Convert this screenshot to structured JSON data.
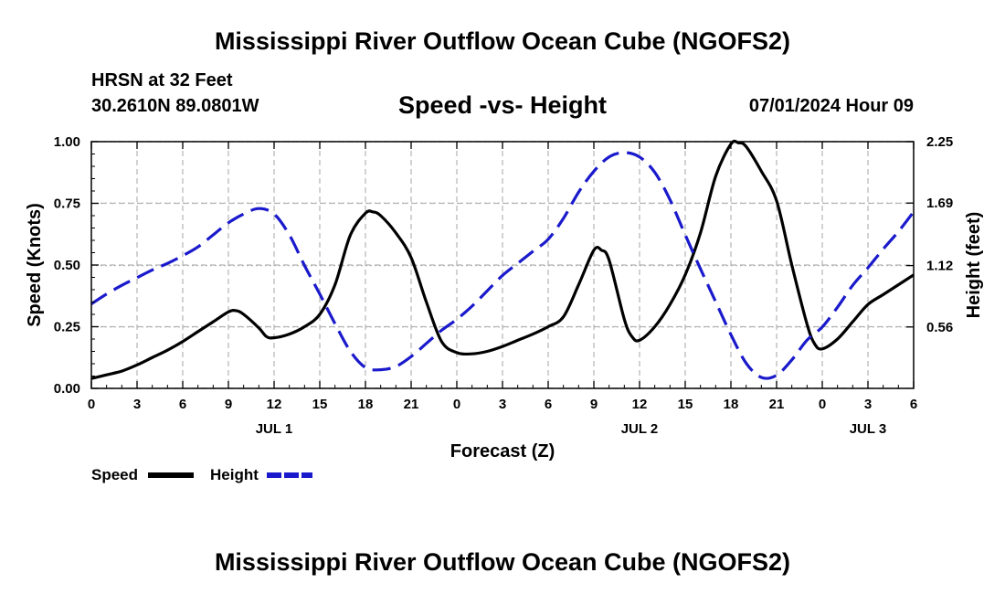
{
  "page": {
    "main_title": "Mississippi River Outflow Ocean Cube (NGOFS2)",
    "station_line": "HRSN at 32 Feet",
    "coords_line": "30.2610N  89.0801W",
    "subtitle": "Speed -vs- Height",
    "timestamp": "07/01/2024 Hour 09",
    "footer_title": "Mississippi River Outflow Ocean Cube (NGOFS2)"
  },
  "colors": {
    "speed": "#000000",
    "height": "#1a1acc",
    "grid": "#b4b4b4"
  },
  "chart_data": {
    "type": "line",
    "title": "Speed -vs- Height",
    "xlabel": "Forecast (Z)",
    "ylabel_left": "Speed (Knots)",
    "ylabel_right": "Height (feet)",
    "x_unit": "hours since 00Z Jul 1",
    "xlim": [
      0,
      54
    ],
    "x_ticks": [
      0,
      3,
      6,
      9,
      12,
      15,
      18,
      21,
      24,
      27,
      30,
      33,
      36,
      39,
      42,
      45,
      48,
      51,
      54
    ],
    "x_tick_labels": [
      "0",
      "3",
      "6",
      "9",
      "12",
      "15",
      "18",
      "21",
      "0",
      "3",
      "6",
      "9",
      "12",
      "15",
      "18",
      "21",
      "0",
      "3",
      "6"
    ],
    "day_labels": [
      {
        "x": 12,
        "label": "JUL 1"
      },
      {
        "x": 36,
        "label": "JUL 2"
      },
      {
        "x": 51,
        "label": "JUL 3"
      }
    ],
    "ylim_left": [
      0,
      1
    ],
    "left_ticks": [
      0,
      0.25,
      0.5,
      0.75,
      1.0
    ],
    "left_tick_labels": [
      "0.00",
      "0.25",
      "0.50",
      "0.75",
      "1.00"
    ],
    "ylim_right": [
      0,
      2.25
    ],
    "right_ticks": [
      0.56,
      1.12,
      1.69,
      2.25
    ],
    "right_tick_labels": [
      "0.56",
      "1.12",
      "1.69",
      "2.25"
    ],
    "grid": true,
    "legend": [
      {
        "label": "Speed",
        "style": "solid",
        "series": "speed"
      },
      {
        "label": "Height",
        "style": "dashed",
        "series": "height"
      }
    ],
    "series": [
      {
        "name": "Speed",
        "axis": "left",
        "style": "solid",
        "x": [
          0,
          1,
          2,
          3,
          4,
          5,
          6,
          7,
          8,
          9,
          9.5,
          10,
          11,
          11.5,
          12,
          13,
          14,
          15,
          16,
          17,
          18,
          18.5,
          19,
          20,
          21,
          22,
          23,
          24,
          25,
          26,
          27,
          28,
          29,
          30,
          31,
          32,
          33,
          33.5,
          34,
          35,
          35.5,
          36,
          37,
          38,
          39,
          40,
          41,
          42,
          42.5,
          43,
          44,
          45,
          46,
          47,
          47.5,
          48,
          49,
          50,
          51,
          52,
          53,
          54
        ],
        "values": [
          0.04,
          0.055,
          0.07,
          0.095,
          0.125,
          0.155,
          0.19,
          0.23,
          0.27,
          0.31,
          0.315,
          0.3,
          0.245,
          0.21,
          0.205,
          0.22,
          0.25,
          0.3,
          0.42,
          0.62,
          0.71,
          0.715,
          0.7,
          0.63,
          0.53,
          0.35,
          0.19,
          0.145,
          0.14,
          0.15,
          0.17,
          0.195,
          0.22,
          0.25,
          0.29,
          0.42,
          0.56,
          0.56,
          0.52,
          0.28,
          0.21,
          0.195,
          0.25,
          0.34,
          0.46,
          0.63,
          0.86,
          0.99,
          0.995,
          0.98,
          0.88,
          0.76,
          0.5,
          0.26,
          0.18,
          0.16,
          0.2,
          0.27,
          0.34,
          0.38,
          0.42,
          0.46
        ]
      },
      {
        "name": "Height",
        "axis": "right",
        "style": "dashed",
        "x": [
          0,
          1,
          2,
          3,
          4,
          5,
          6,
          7,
          8,
          9,
          10,
          11,
          12,
          13,
          14,
          15,
          16,
          17,
          18,
          19,
          20,
          21,
          22,
          23,
          24,
          25,
          26,
          27,
          28,
          29,
          30,
          31,
          32,
          33,
          34,
          35,
          36,
          37,
          38,
          39,
          40,
          41,
          42,
          43,
          44,
          45,
          46,
          47,
          48,
          49,
          50,
          51,
          52,
          53,
          54
        ],
        "values": [
          0.77,
          0.86,
          0.94,
          1.01,
          1.08,
          1.14,
          1.21,
          1.29,
          1.4,
          1.51,
          1.59,
          1.64,
          1.59,
          1.4,
          1.12,
          0.86,
          0.59,
          0.34,
          0.19,
          0.17,
          0.2,
          0.29,
          0.41,
          0.53,
          0.63,
          0.75,
          0.89,
          1.03,
          1.14,
          1.25,
          1.36,
          1.55,
          1.79,
          1.98,
          2.11,
          2.15,
          2.11,
          1.97,
          1.72,
          1.4,
          1.09,
          0.79,
          0.49,
          0.23,
          0.1,
          0.12,
          0.26,
          0.44,
          0.56,
          0.74,
          0.94,
          1.1,
          1.27,
          1.43,
          1.61
        ]
      }
    ]
  }
}
